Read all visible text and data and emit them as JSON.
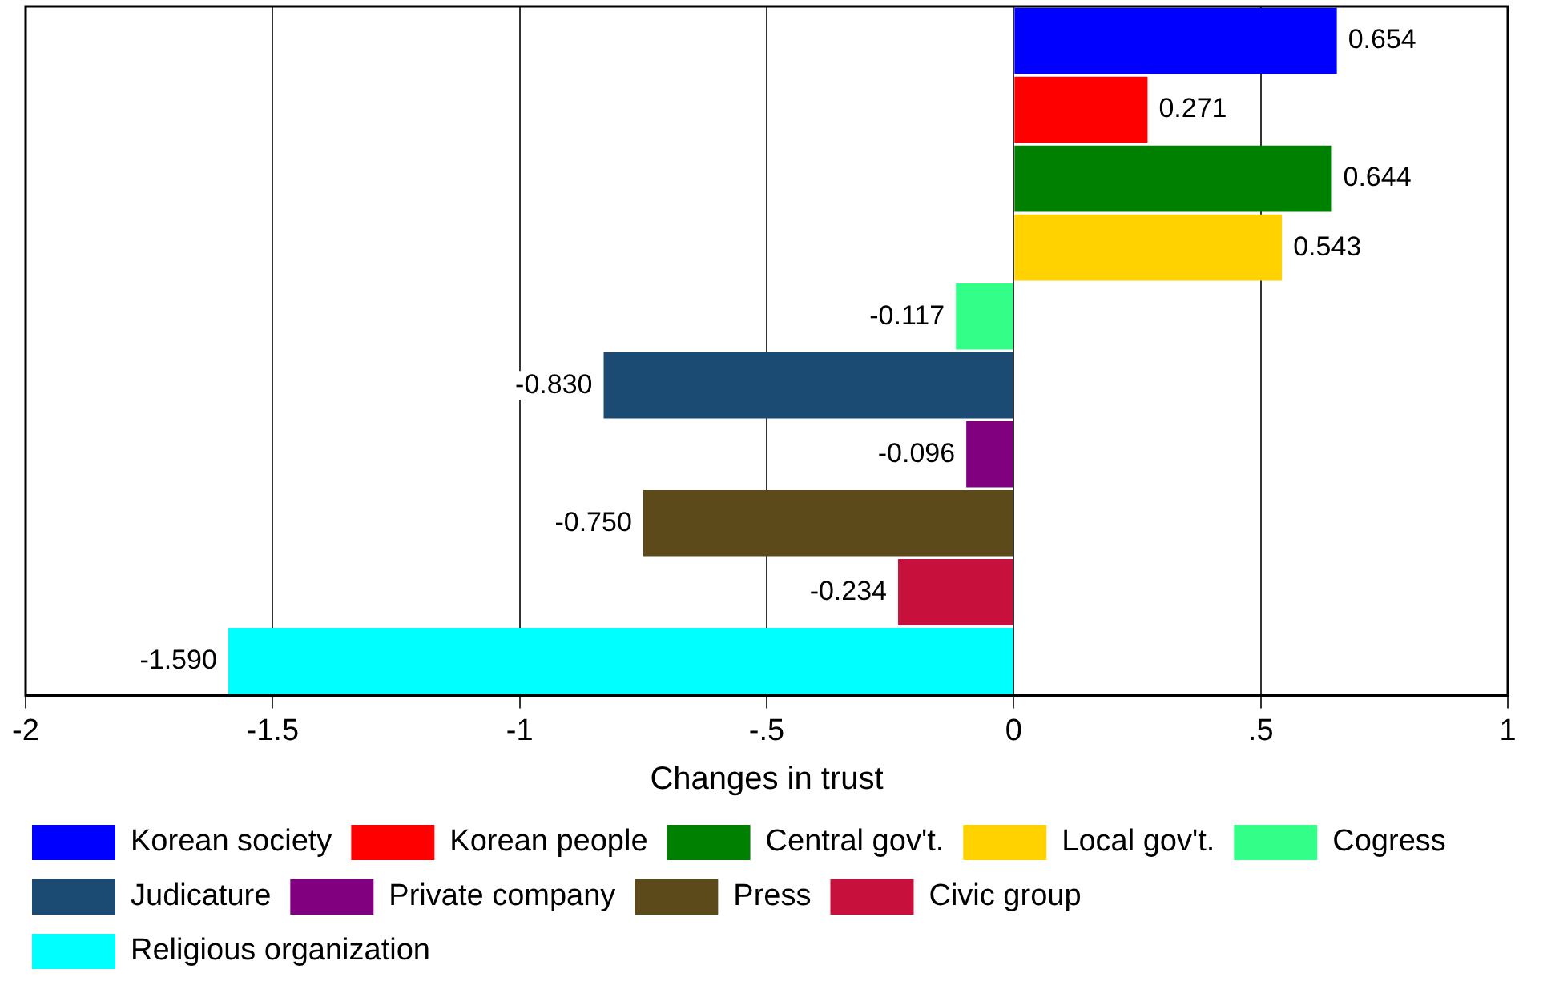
{
  "chart_data": {
    "type": "bar",
    "orientation": "horizontal",
    "categories": [
      null,
      null,
      null,
      null,
      null,
      null,
      null,
      null,
      null,
      null
    ],
    "series": [
      {
        "name": "Korean society",
        "color": "#0000ff",
        "values": [
          0.654,
          null,
          null,
          null,
          null,
          null,
          null,
          null,
          null,
          null
        ],
        "value_labels": [
          "0.654",
          null,
          null,
          null,
          null,
          null,
          null,
          null,
          null,
          null
        ]
      },
      {
        "name": "Korean people",
        "color": "#ff0000",
        "values": [
          null,
          0.271,
          null,
          null,
          null,
          null,
          null,
          null,
          null,
          null
        ],
        "value_labels": [
          null,
          "0.271",
          null,
          null,
          null,
          null,
          null,
          null,
          null,
          null
        ]
      },
      {
        "name": "Central gov't.",
        "color": "#008000",
        "values": [
          null,
          null,
          0.644,
          null,
          null,
          null,
          null,
          null,
          null,
          null
        ],
        "value_labels": [
          null,
          null,
          "0.644",
          null,
          null,
          null,
          null,
          null,
          null,
          null
        ]
      },
      {
        "name": "Local gov't.",
        "color": "#ffd200",
        "values": [
          null,
          null,
          null,
          0.543,
          null,
          null,
          null,
          null,
          null,
          null
        ],
        "value_labels": [
          null,
          null,
          null,
          "0.543",
          null,
          null,
          null,
          null,
          null,
          null
        ]
      },
      {
        "name": "Cogress",
        "color": "#33ff88",
        "values": [
          null,
          null,
          null,
          null,
          -0.117,
          null,
          null,
          null,
          null,
          null
        ],
        "value_labels": [
          null,
          null,
          null,
          null,
          "-0.117",
          null,
          null,
          null,
          null,
          null
        ]
      },
      {
        "name": "Judicature",
        "color": "#1b4a72",
        "values": [
          null,
          null,
          null,
          null,
          null,
          -0.83,
          null,
          null,
          null,
          null
        ],
        "value_labels": [
          null,
          null,
          null,
          null,
          null,
          "-0.830",
          null,
          null,
          null,
          null
        ]
      },
      {
        "name": "Private company",
        "color": "#800080",
        "values": [
          null,
          null,
          null,
          null,
          null,
          null,
          -0.096,
          null,
          null,
          null
        ],
        "value_labels": [
          null,
          null,
          null,
          null,
          null,
          null,
          "-0.096",
          null,
          null,
          null
        ]
      },
      {
        "name": "Press",
        "color": "#5c4a1a",
        "values": [
          null,
          null,
          null,
          null,
          null,
          null,
          null,
          -0.75,
          null,
          null
        ],
        "value_labels": [
          null,
          null,
          null,
          null,
          null,
          null,
          null,
          "-0.750",
          null,
          null
        ]
      },
      {
        "name": "Civic group",
        "color": "#c8103c",
        "values": [
          null,
          null,
          null,
          null,
          null,
          null,
          null,
          null,
          -0.234,
          null
        ],
        "value_labels": [
          null,
          null,
          null,
          null,
          null,
          null,
          null,
          null,
          "-0.234",
          null
        ]
      },
      {
        "name": "Religious organization",
        "color": "#00ffff",
        "values": [
          null,
          null,
          null,
          null,
          null,
          null,
          null,
          null,
          null,
          -1.59
        ],
        "value_labels": [
          null,
          null,
          null,
          null,
          null,
          null,
          null,
          null,
          null,
          "-1.590"
        ]
      }
    ],
    "xlabel": "Changes in trust",
    "xlim": [
      -2,
      1
    ],
    "xticks": [
      -2,
      {
        "value": -1.5,
        "label": "-1.5"
      },
      -1,
      {
        "value": -0.5,
        "label": "-.5"
      },
      0,
      {
        "value": 0.5,
        "label": ".5"
      },
      1
    ],
    "grid": "x",
    "legend": "bottom",
    "tick_labels": "x"
  }
}
